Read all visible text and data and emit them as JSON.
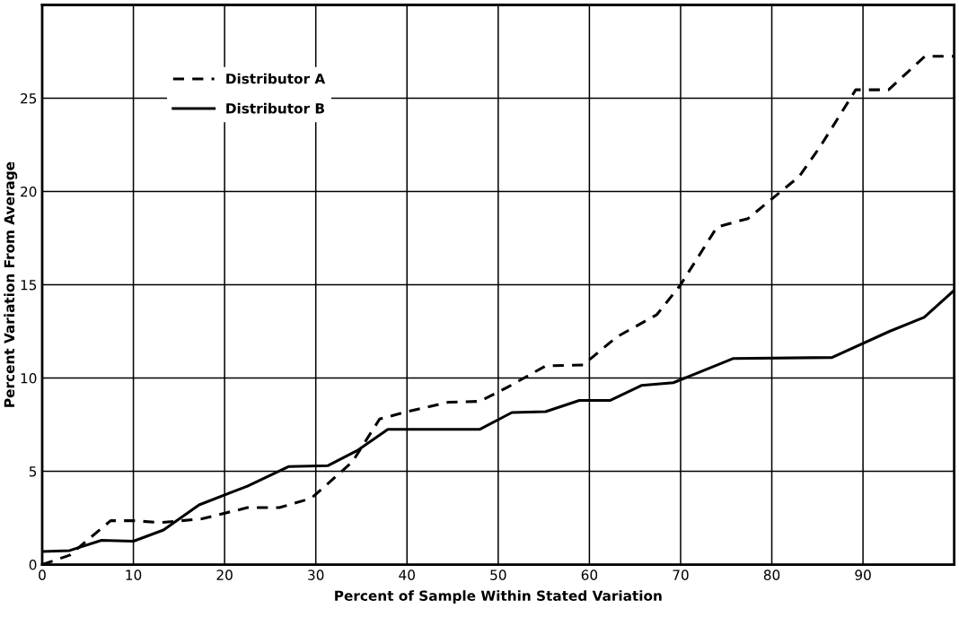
{
  "chart_data": {
    "type": "line",
    "xlabel": "Percent of Sample Within Stated Variation",
    "ylabel": "Percent Variation From Average",
    "xlim": [
      0,
      100
    ],
    "xticks": [
      0,
      10,
      20,
      30,
      40,
      50,
      60,
      70,
      80,
      90,
      {
        "value": 100,
        "label": null
      }
    ],
    "ylim": [
      0,
      30
    ],
    "yticks": [
      0,
      5,
      10,
      15,
      20,
      25,
      {
        "value": 30,
        "label": null
      }
    ],
    "grid": true,
    "legend": "top left",
    "series": [
      {
        "name": "Distributor A",
        "color": "#000000",
        "line_style": "dashed",
        "x": [
          0,
          3,
          7.5,
          10,
          13,
          17.5,
          22.5,
          26,
          29.5,
          34,
          37,
          40,
          44.5,
          48,
          51,
          55.2,
          59.3,
          63,
          67.4,
          70,
          74,
          77.4,
          80,
          83,
          85.3,
          89.2,
          92.8,
          96.8,
          100
        ],
        "values": [
          0,
          0.5,
          2.35,
          2.35,
          2.25,
          2.45,
          3.05,
          3.05,
          3.55,
          5.5,
          7.8,
          8.2,
          8.7,
          8.75,
          9.5,
          10.65,
          10.7,
          12.2,
          13.4,
          15,
          18.1,
          18.55,
          19.6,
          20.8,
          22.4,
          25.45,
          25.45,
          27.25,
          27.25
        ]
      },
      {
        "name": "Distributor B",
        "color": "#000000",
        "line_style": "solid",
        "x": [
          0,
          3,
          6.5,
          10,
          13.3,
          17.2,
          22.5,
          27,
          31.3,
          34.5,
          37.9,
          48,
          51.5,
          55.2,
          58.9,
          62.3,
          65.7,
          69.2,
          75.8,
          86.6,
          92.9,
          96.7,
          100
        ],
        "values": [
          0.7,
          0.75,
          1.3,
          1.25,
          1.85,
          3.2,
          4.2,
          5.25,
          5.3,
          6.1,
          7.25,
          7.25,
          8.15,
          8.2,
          8.8,
          8.8,
          9.6,
          9.75,
          11.05,
          11.1,
          12.5,
          13.25,
          14.7
        ]
      }
    ]
  }
}
